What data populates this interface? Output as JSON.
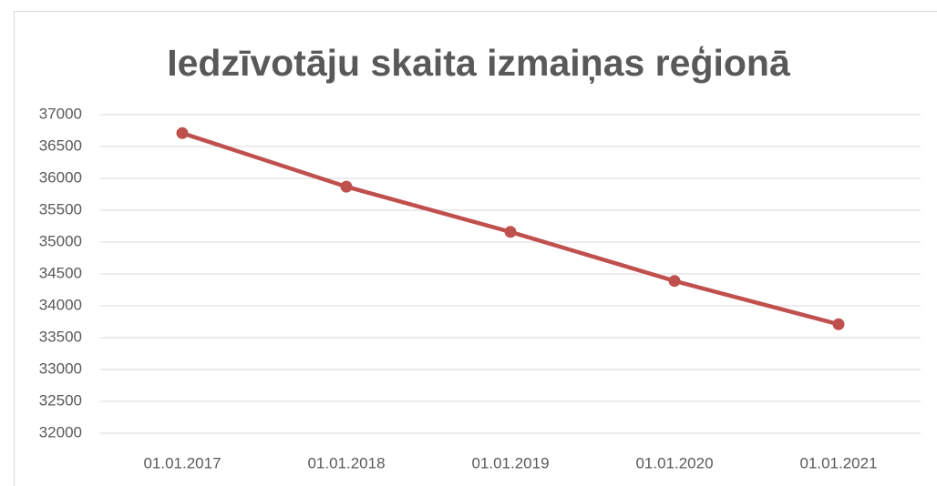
{
  "chart_data": {
    "type": "line",
    "title": "Iedzīvotāju skaita izmaiņas reģionā",
    "categories": [
      "01.01.2017",
      "01.01.2018",
      "01.01.2019",
      "01.01.2020",
      "01.01.2021"
    ],
    "values": [
      36710,
      35870,
      35160,
      34390,
      33710
    ],
    "color": "#c0504d",
    "ylim": [
      32000,
      37000
    ],
    "yticks": [
      32000,
      32500,
      33000,
      33500,
      34000,
      34500,
      35000,
      35500,
      36000,
      36500,
      37000
    ],
    "grid": true
  }
}
